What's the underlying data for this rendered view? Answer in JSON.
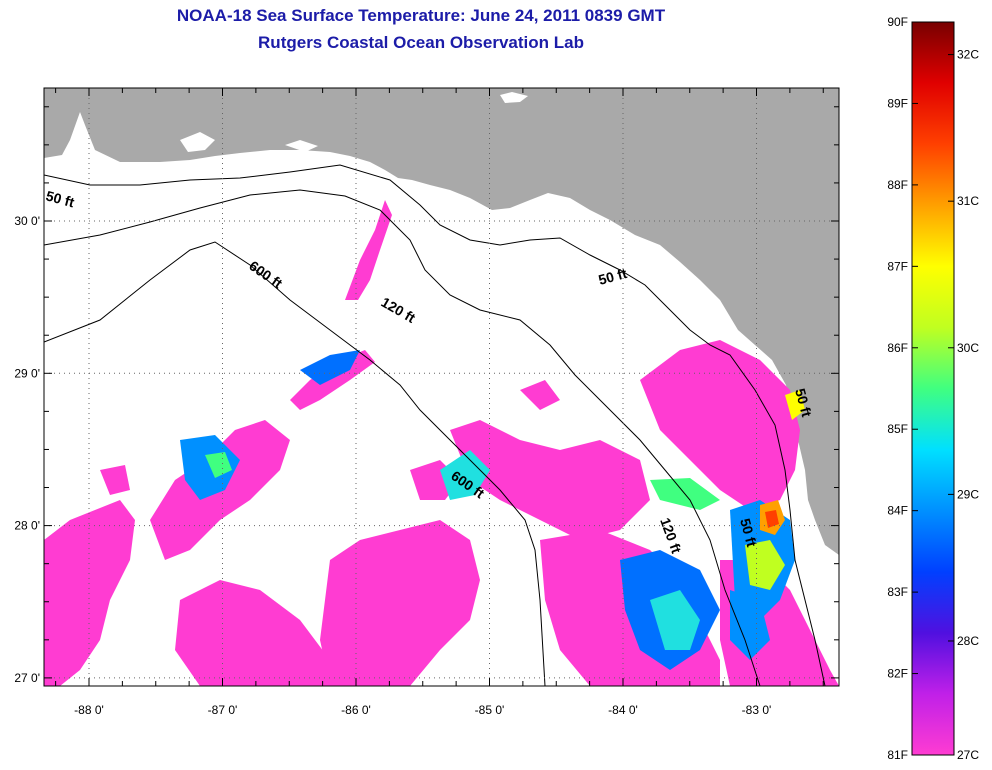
{
  "title": "NOAA-18 Sea Surface Temperature:  June 24, 2011 0839 GMT",
  "subtitle": "Rutgers Coastal Ocean Observation Lab",
  "lon_ticks": [
    {
      "value": -88,
      "label": "-88 0'"
    },
    {
      "value": -87,
      "label": "-87 0'"
    },
    {
      "value": -86,
      "label": "-86 0'"
    },
    {
      "value": -85,
      "label": "-85 0'"
    },
    {
      "value": -84,
      "label": "-84 0'"
    },
    {
      "value": -83,
      "label": "-83 0'"
    }
  ],
  "lat_ticks": [
    {
      "value": 30,
      "label": "30 0'"
    },
    {
      "value": 29,
      "label": "29 0'"
    },
    {
      "value": 28,
      "label": "28 0'"
    },
    {
      "value": 27,
      "label": "27 0'"
    }
  ],
  "depth_labels": [
    "50 ft",
    "600 ft",
    "120 ft",
    "50 ft",
    "600 ft",
    "120 ft",
    "50 ft",
    "50 ft"
  ],
  "colorbar": {
    "fahrenheit": [
      "90F",
      "89F",
      "88F",
      "87F",
      "86F",
      "85F",
      "84F",
      "83F",
      "82F",
      "81F"
    ],
    "celsius": [
      "32C",
      "31C",
      "30C",
      "29C",
      "28C",
      "27C"
    ],
    "colors": [
      "#ff3cd2",
      "#c020e8",
      "#5010e0",
      "#0040ff",
      "#0090ff",
      "#00e0ff",
      "#40ff80",
      "#c0ff20",
      "#ffff00",
      "#ffa000",
      "#ff4000",
      "#e00000",
      "#780000"
    ]
  },
  "colors": {
    "land": "#a9a9a9",
    "water": "#ffffff",
    "sst_low": "#ff3cd2",
    "title": "#1c1ca8"
  }
}
